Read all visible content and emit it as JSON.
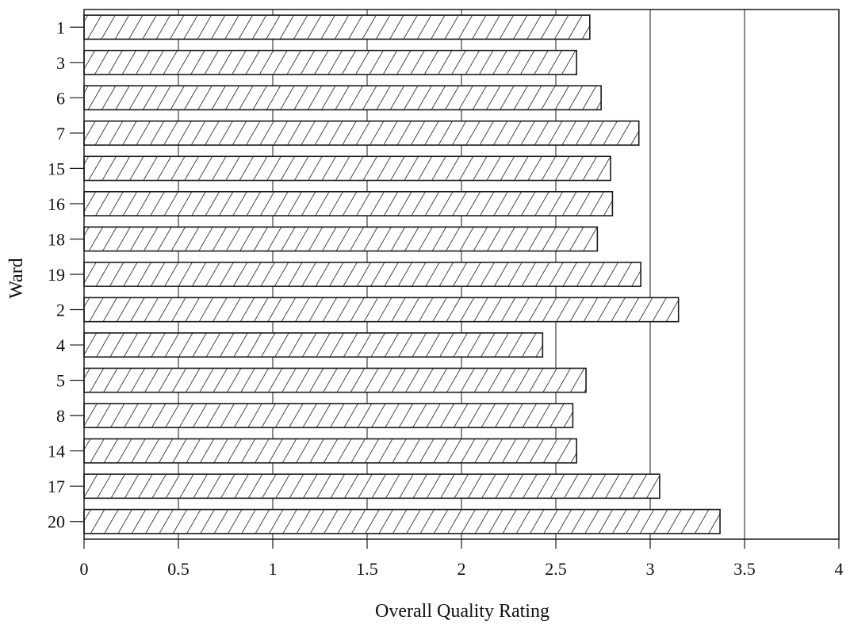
{
  "chart_data": {
    "type": "bar",
    "orientation": "horizontal",
    "title": "",
    "xlabel": "Overall Quality Rating",
    "ylabel": "Ward",
    "xlim": [
      0,
      4
    ],
    "xticks": [
      0,
      0.5,
      1,
      1.5,
      2,
      2.5,
      3,
      3.5,
      4
    ],
    "xtick_labels": [
      "0",
      "0.5",
      "1",
      "1.5",
      "2",
      "2.5",
      "3",
      "3.5",
      "4"
    ],
    "grid": "vertical",
    "bar_fill": "diagonal-hatch",
    "categories": [
      "1",
      "3",
      "6",
      "7",
      "15",
      "16",
      "18",
      "19",
      "2",
      "4",
      "5",
      "8",
      "14",
      "17",
      "20"
    ],
    "values": [
      2.68,
      2.61,
      2.74,
      2.94,
      2.79,
      2.8,
      2.72,
      2.95,
      3.15,
      2.43,
      2.66,
      2.59,
      2.61,
      3.05,
      3.37
    ]
  },
  "colors": {
    "stroke": "#1a1a1a",
    "background": "#ffffff"
  }
}
